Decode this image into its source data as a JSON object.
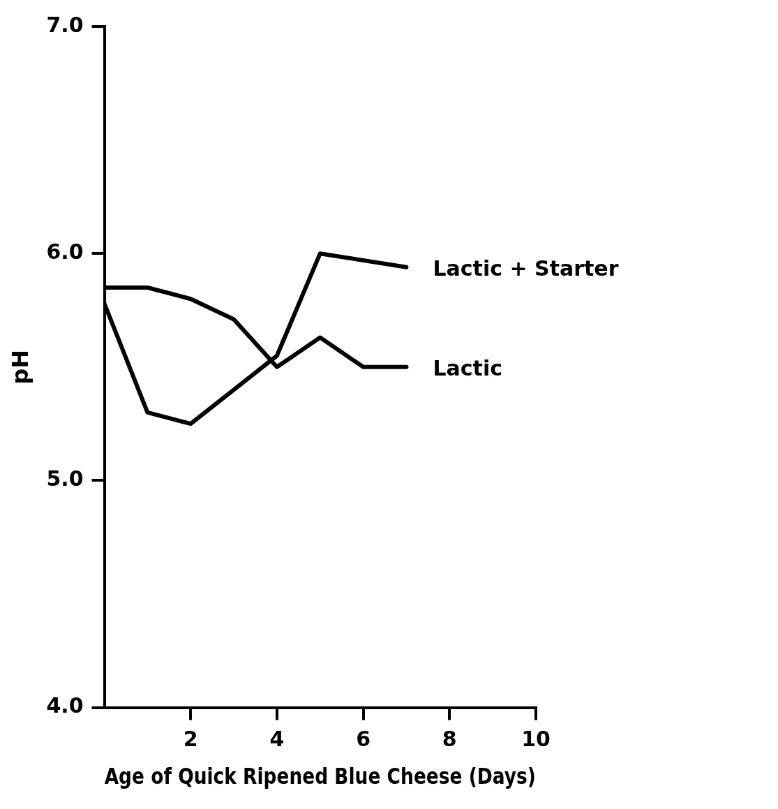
{
  "chart_data": {
    "type": "line",
    "xlabel": "Age of Quick Ripened Blue Cheese (Days)",
    "ylabel": "pH",
    "xlim": [
      0,
      10
    ],
    "xticks": [
      2,
      4,
      6,
      8,
      10
    ],
    "ylim": [
      4,
      7
    ],
    "yticks": [
      {
        "value": 4,
        "label": "4.0"
      },
      {
        "value": 5,
        "label": "5.0"
      },
      {
        "value": 6,
        "label": "6.0"
      },
      {
        "value": 7,
        "label": "7.0"
      }
    ],
    "grid": false,
    "legend": false,
    "marker": "none",
    "line_style": "solid",
    "series": [
      {
        "name": "Lactic + Starter",
        "color": "#000000",
        "x": [
          0,
          1,
          2,
          4,
          5,
          7
        ],
        "values": [
          5.78,
          5.3,
          5.25,
          5.55,
          6.0,
          5.94
        ]
      },
      {
        "name": "Lactic",
        "color": "#000000",
        "x": [
          0,
          1,
          2,
          3,
          4,
          5,
          6,
          7
        ],
        "values": [
          5.85,
          5.85,
          5.8,
          5.71,
          5.5,
          5.63,
          5.5,
          5.5
        ]
      }
    ]
  }
}
